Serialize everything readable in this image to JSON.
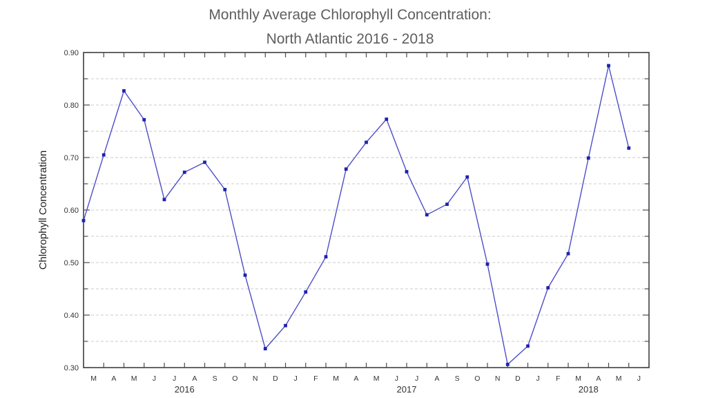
{
  "title": {
    "line1": "Monthly Average Chlorophyll Concentration:",
    "line2": "North Atlantic 2016 - 2018"
  },
  "chart_data": {
    "type": "line",
    "title": "Monthly Average Chlorophyll Concentration: North Atlantic 2016 - 2018",
    "xlabel": "",
    "ylabel": "Chlorophyll Concentration",
    "ylim": [
      0.3,
      0.9
    ],
    "ytick_major_step": 0.1,
    "ytick_minor_step": 0.05,
    "ytick_labels": [
      "0.30",
      "0.40",
      "0.50",
      "0.60",
      "0.70",
      "0.80",
      "0.90"
    ],
    "grid": {
      "horizontal": true,
      "vertical": false,
      "style": "dashed",
      "step": 0.05
    },
    "legend": "none",
    "x_month_labels": [
      "M",
      "A",
      "M",
      "J",
      "J",
      "A",
      "S",
      "O",
      "N",
      "D",
      "J",
      "F",
      "M",
      "A",
      "M",
      "J",
      "J",
      "A",
      "S",
      "O",
      "N",
      "D",
      "J",
      "F",
      "M",
      "A",
      "M",
      "J"
    ],
    "x": [
      "2016-03",
      "2016-04",
      "2016-05",
      "2016-06",
      "2016-07",
      "2016-08",
      "2016-09",
      "2016-10",
      "2016-11",
      "2016-12",
      "2017-01",
      "2017-02",
      "2017-03",
      "2017-04",
      "2017-05",
      "2017-06",
      "2017-07",
      "2017-08",
      "2017-09",
      "2017-10",
      "2017-11",
      "2017-12",
      "2018-01",
      "2018-02",
      "2018-03",
      "2018-04",
      "2018-05",
      "2018-06"
    ],
    "year_labels": [
      {
        "label": "2016",
        "center_month_index": 5
      },
      {
        "label": "2017",
        "center_month_index": 16
      },
      {
        "label": "2018",
        "center_month_index": 25
      }
    ],
    "series": [
      {
        "name": "Monthly Average Chlorophyll Concentration",
        "values": [
          0.58,
          0.705,
          0.827,
          0.772,
          0.62,
          0.672,
          0.691,
          0.639,
          0.476,
          0.336,
          0.38,
          0.444,
          0.511,
          0.678,
          0.729,
          0.773,
          0.673,
          0.591,
          0.611,
          0.663,
          0.497,
          0.306,
          0.341,
          0.452,
          0.517,
          0.699,
          0.875,
          0.718
        ]
      }
    ]
  },
  "colors": {
    "line": "#4d4dc9",
    "marker": "#2121ad",
    "grid": "#cbcbcb",
    "axis": "#4a4a4a",
    "tick_label": "#333333",
    "title": "#5e5e5e",
    "background": "#ffffff"
  }
}
